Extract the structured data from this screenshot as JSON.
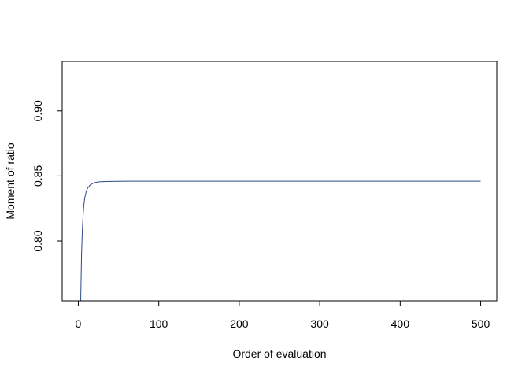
{
  "chart_data": {
    "type": "line",
    "title": "",
    "xlabel": "Order of evaluation",
    "ylabel": "Moment of ratio",
    "xlim": [
      -20,
      520
    ],
    "ylim": [
      0.754,
      0.938
    ],
    "x_ticks": [
      0,
      100,
      200,
      300,
      400,
      500
    ],
    "x_tick_labels": [
      "0",
      "100",
      "200",
      "300",
      "400",
      "500"
    ],
    "y_ticks": [
      0.8,
      0.85,
      0.9
    ],
    "y_tick_labels": [
      "0.80",
      "0.85",
      "0.90"
    ],
    "grid": false,
    "series": [
      {
        "color": "#2e4a86",
        "x": [
          3,
          4,
          5,
          6,
          7,
          8,
          10,
          12,
          15,
          20,
          25,
          30,
          40,
          60,
          100,
          200,
          300,
          400,
          500
        ],
        "y": [
          0.754,
          0.788,
          0.808,
          0.82,
          0.828,
          0.833,
          0.8385,
          0.841,
          0.8432,
          0.8448,
          0.8454,
          0.8456,
          0.8458,
          0.8459,
          0.8459,
          0.8459,
          0.8459,
          0.8459,
          0.8459
        ]
      }
    ]
  }
}
